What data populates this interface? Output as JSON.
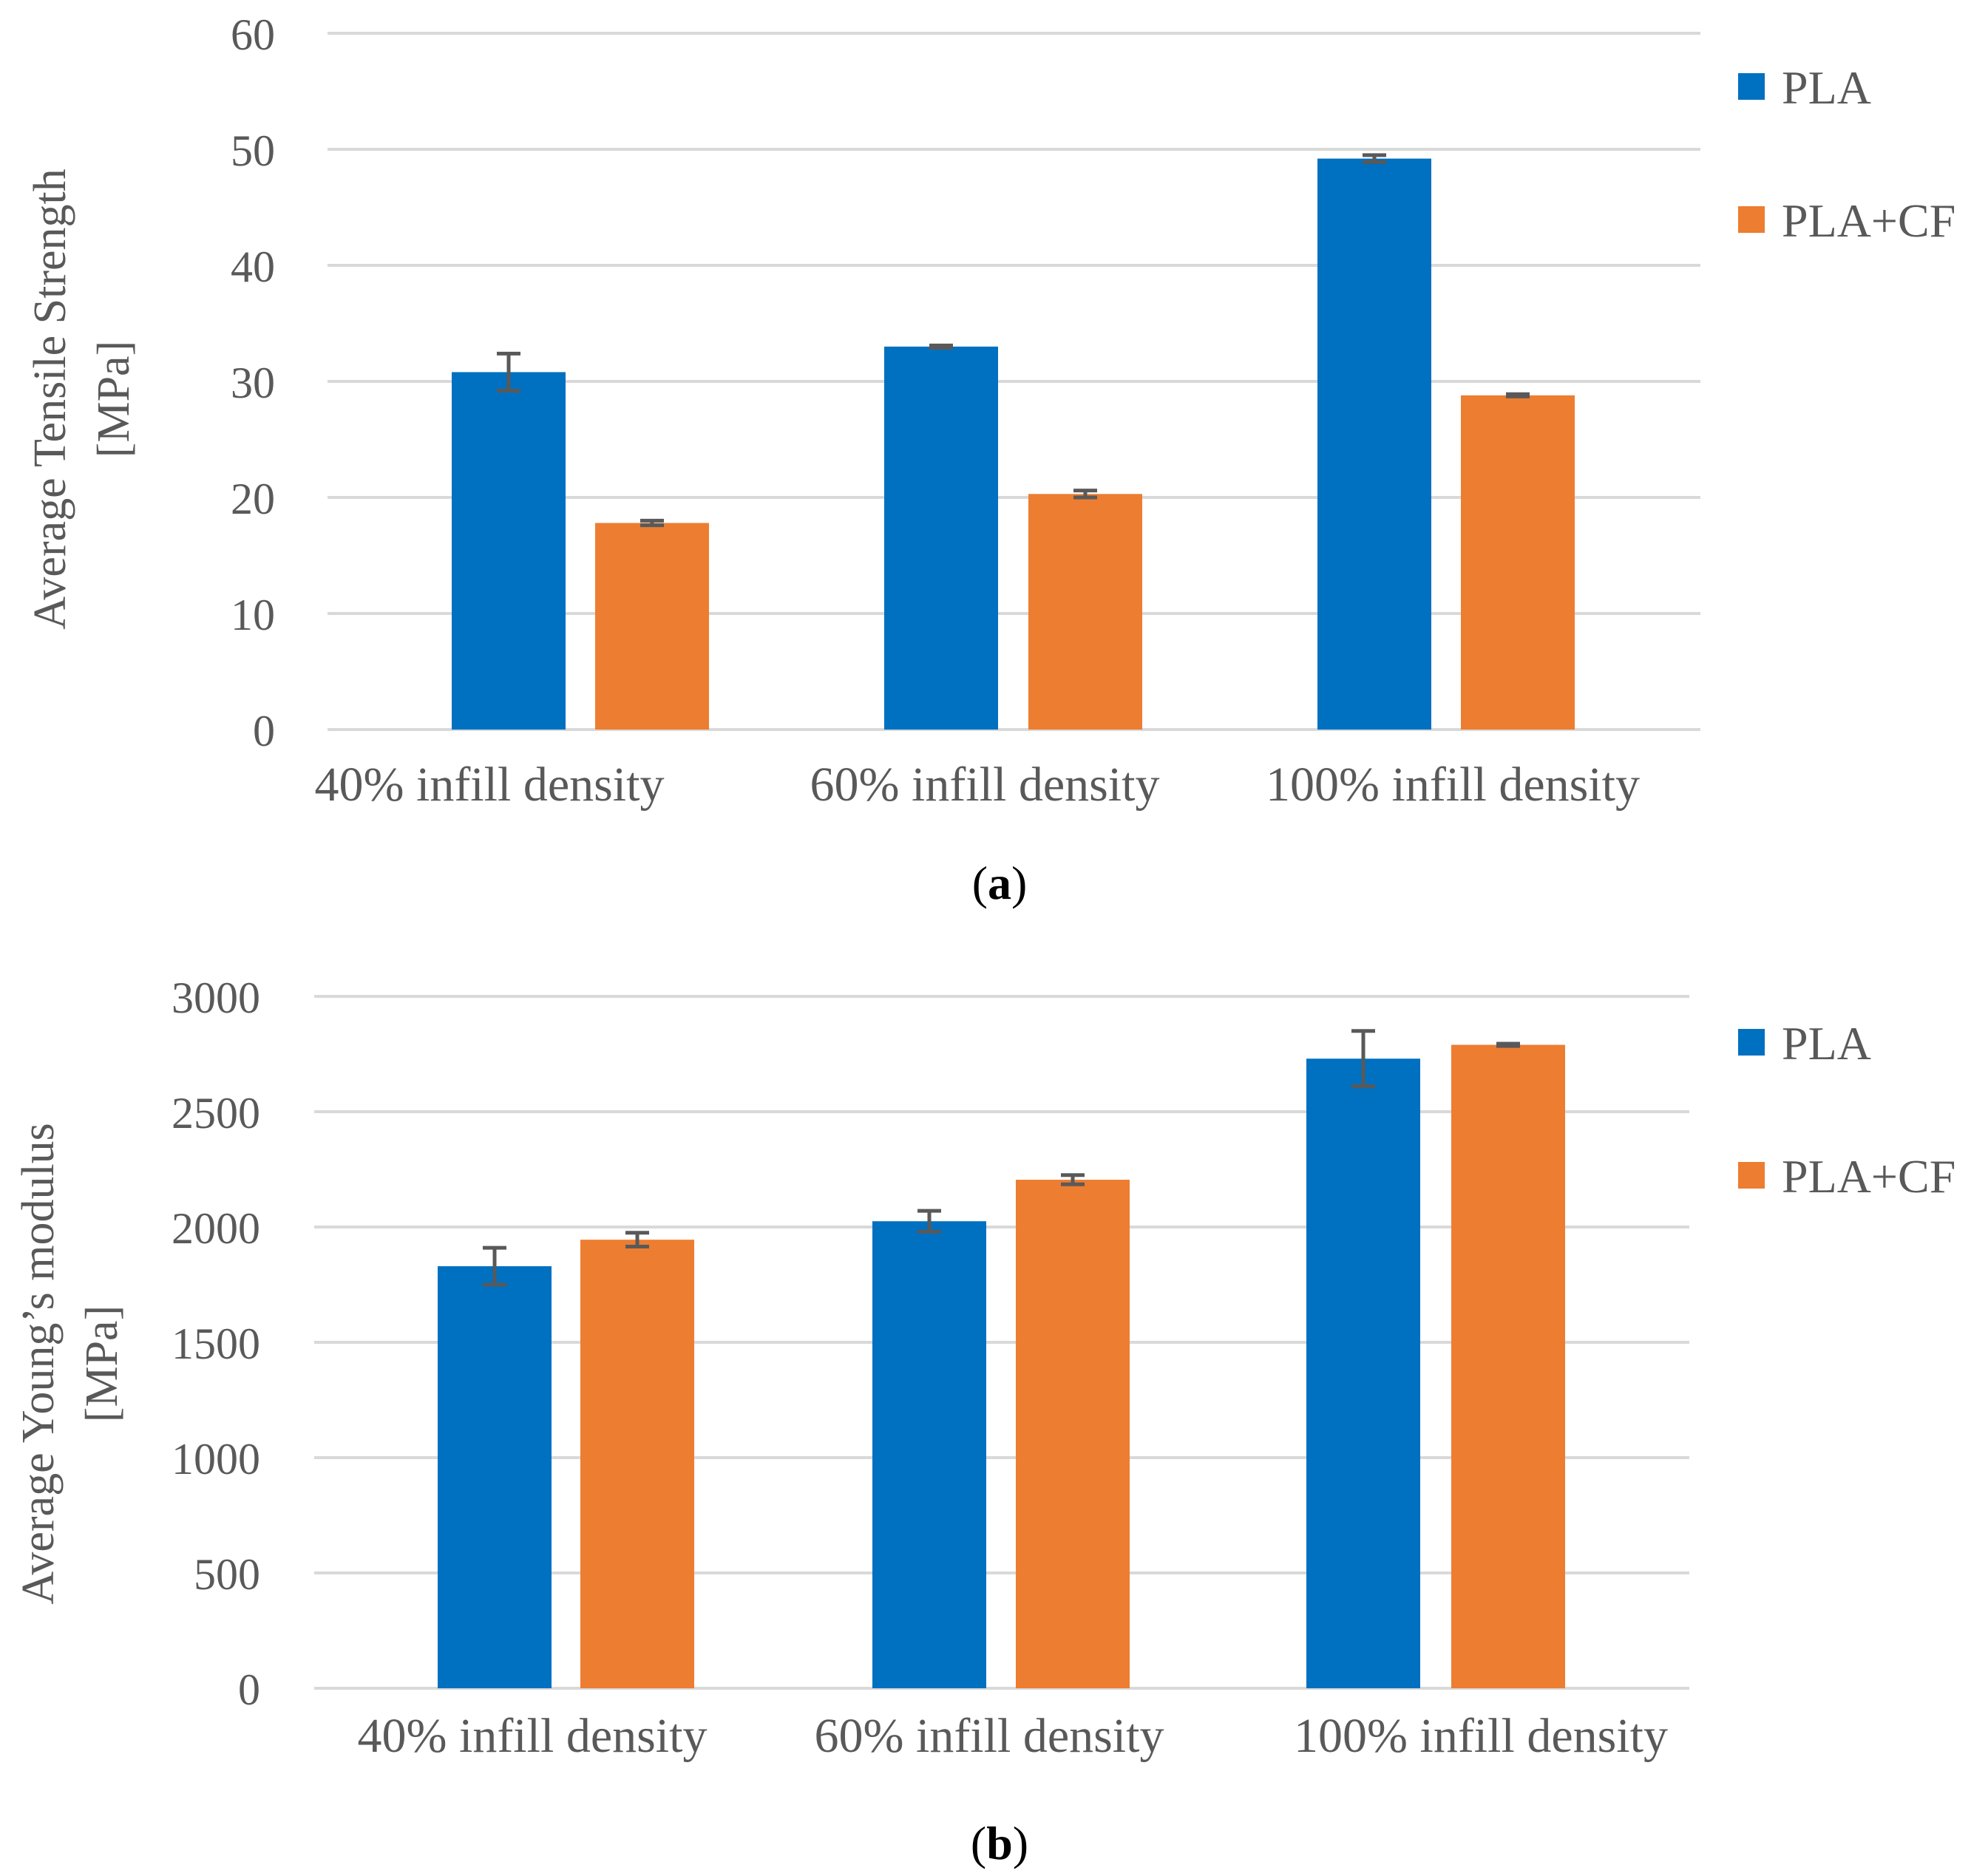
{
  "chart_data": [
    {
      "type": "bar",
      "panel_label": "a",
      "ylabel_line1": "Average Tensile Strength",
      "ylabel_line2": "[MPa]",
      "ylim": [
        0,
        60
      ],
      "yticks": [
        "0",
        "10",
        "20",
        "30",
        "40",
        "50",
        "60"
      ],
      "categories": [
        "40% infill density",
        "60% infill density",
        "100% infill density"
      ],
      "series": [
        {
          "name": "PLA",
          "color": "#0070c0",
          "values": [
            30.8,
            33.0,
            49.2
          ],
          "errors": [
            1.6,
            0.1,
            0.3
          ]
        },
        {
          "name": "PLA+CF",
          "color": "#ed7d31",
          "values": [
            17.8,
            20.3,
            28.8
          ],
          "errors": [
            0.2,
            0.3,
            0.1
          ]
        }
      ],
      "legend": "top-right",
      "grid": true
    },
    {
      "type": "bar",
      "panel_label": "b",
      "ylabel_line1": "Average Young’s modulus",
      "ylabel_line2": "[MPa]",
      "ylim": [
        0,
        3000
      ],
      "yticks": [
        "0",
        "500",
        "1000",
        "1500",
        "2000",
        "2500",
        "3000"
      ],
      "categories": [
        "40% infill density",
        "60% infill density",
        "100% infill density"
      ],
      "series": [
        {
          "name": "PLA",
          "color": "#0070c0",
          "values": [
            1830,
            2025,
            2730
          ],
          "errors": [
            80,
            45,
            120
          ]
        },
        {
          "name": "PLA+CF",
          "color": "#ed7d31",
          "values": [
            1945,
            2205,
            2790
          ],
          "errors": [
            30,
            20,
            5
          ]
        }
      ],
      "legend": "top-right",
      "grid": true
    }
  ]
}
